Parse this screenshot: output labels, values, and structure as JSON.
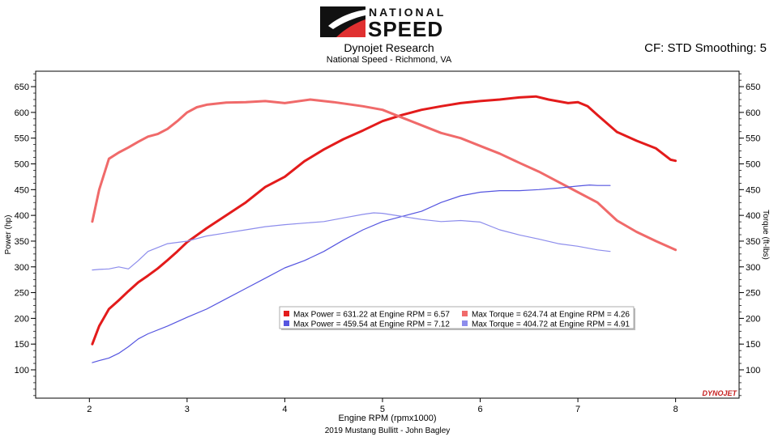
{
  "header": {
    "logo_top": "NATIONAL",
    "logo_bottom": "SPEED",
    "title": "Dynojet Research",
    "subtitle": "National Speed - Richmond, VA",
    "correction": "CF: STD Smoothing: 5",
    "footer": "2019 Mustang Bullitt - John Bagley",
    "watermark": "DYNOJET"
  },
  "colors": {
    "power_after": "#e31b1b",
    "torque_after": "#f06a6a",
    "power_before": "#5555e0",
    "torque_before": "#8c8cec",
    "plot_bg": "#ffffff",
    "frame": "#000000"
  },
  "chart_data": {
    "type": "line",
    "xlabel": "Engine RPM (rpmx1000)",
    "ylabel_left": "Power (hp)",
    "ylabel_right": "Torque (ft-lbs)",
    "xlim": [
      1.45,
      8.65
    ],
    "ylim": [
      45,
      680
    ],
    "xticks": [
      2,
      3,
      4,
      5,
      6,
      7,
      8
    ],
    "yticks": [
      100,
      150,
      200,
      250,
      300,
      350,
      400,
      450,
      500,
      550,
      600,
      650
    ],
    "grid": false,
    "legend_position": "center",
    "series": [
      {
        "key": "power_after",
        "width": 3,
        "legend": "Max Power = 631.22 at Engine RPM = 6.57",
        "x": [
          2.03,
          2.1,
          2.2,
          2.3,
          2.4,
          2.5,
          2.6,
          2.7,
          2.8,
          2.9,
          3.0,
          3.2,
          3.4,
          3.6,
          3.8,
          4.0,
          4.2,
          4.4,
          4.6,
          4.8,
          5.0,
          5.2,
          5.4,
          5.6,
          5.8,
          6.0,
          6.2,
          6.4,
          6.57,
          6.7,
          6.9,
          7.0,
          7.1,
          7.2,
          7.4,
          7.6,
          7.8,
          7.95,
          8.0
        ],
        "y": [
          150,
          185,
          218,
          235,
          253,
          270,
          283,
          297,
          313,
          330,
          348,
          375,
          400,
          425,
          455,
          475,
          505,
          528,
          548,
          565,
          583,
          595,
          605,
          612,
          618,
          622,
          625,
          629,
          631,
          625,
          618,
          620,
          612,
          595,
          562,
          545,
          530,
          508,
          506
        ]
      },
      {
        "key": "torque_after",
        "width": 3,
        "legend": "Max Torque = 624.74 at Engine RPM = 4.26",
        "x": [
          2.03,
          2.1,
          2.2,
          2.3,
          2.4,
          2.5,
          2.6,
          2.7,
          2.8,
          2.9,
          3.0,
          3.1,
          3.2,
          3.4,
          3.6,
          3.8,
          4.0,
          4.26,
          4.5,
          4.8,
          5.0,
          5.2,
          5.4,
          5.6,
          5.8,
          6.0,
          6.2,
          6.4,
          6.6,
          6.8,
          7.0,
          7.2,
          7.4,
          7.6,
          7.8,
          8.0
        ],
        "y": [
          388,
          450,
          510,
          522,
          532,
          543,
          553,
          558,
          568,
          583,
          600,
          610,
          615,
          619,
          620,
          622,
          618,
          625,
          620,
          612,
          605,
          590,
          575,
          560,
          550,
          535,
          520,
          502,
          485,
          465,
          445,
          425,
          390,
          368,
          350,
          333
        ]
      },
      {
        "key": "power_before",
        "width": 1.2,
        "legend": "Max Power = 459.54 at Engine RPM = 7.12",
        "x": [
          2.03,
          2.1,
          2.2,
          2.3,
          2.4,
          2.5,
          2.6,
          2.8,
          3.0,
          3.2,
          3.4,
          3.6,
          3.8,
          4.0,
          4.2,
          4.4,
          4.6,
          4.8,
          5.0,
          5.2,
          5.4,
          5.6,
          5.8,
          6.0,
          6.2,
          6.4,
          6.6,
          6.8,
          7.0,
          7.12,
          7.2,
          7.33
        ],
        "y": [
          114,
          118,
          123,
          132,
          145,
          160,
          170,
          185,
          202,
          218,
          238,
          258,
          278,
          298,
          312,
          330,
          352,
          372,
          388,
          398,
          408,
          425,
          438,
          445,
          448,
          448,
          450,
          453,
          457,
          459,
          458,
          458
        ]
      },
      {
        "key": "torque_before",
        "width": 1.2,
        "legend": "Max Torque = 404.72 at Engine RPM = 4.91",
        "x": [
          2.03,
          2.1,
          2.2,
          2.3,
          2.4,
          2.5,
          2.6,
          2.8,
          3.0,
          3.2,
          3.4,
          3.6,
          3.8,
          4.0,
          4.2,
          4.4,
          4.6,
          4.8,
          4.91,
          5.0,
          5.2,
          5.4,
          5.6,
          5.8,
          6.0,
          6.2,
          6.4,
          6.6,
          6.8,
          7.0,
          7.2,
          7.33
        ],
        "y": [
          294,
          295,
          296,
          300,
          296,
          312,
          330,
          345,
          350,
          360,
          366,
          372,
          378,
          382,
          385,
          388,
          395,
          402,
          405,
          404,
          398,
          392,
          388,
          390,
          387,
          372,
          362,
          354,
          345,
          340,
          333,
          330
        ]
      }
    ],
    "legend": {
      "entries": [
        {
          "key": "power_after",
          "text": "Max Power = 631.22 at Engine RPM = 6.57",
          "col": 0,
          "row": 0
        },
        {
          "key": "torque_after",
          "text": "Max Torque = 624.74 at Engine RPM = 4.26",
          "col": 1,
          "row": 0
        },
        {
          "key": "power_before",
          "text": "Max Power = 459.54 at Engine RPM = 7.12",
          "col": 0,
          "row": 1
        },
        {
          "key": "torque_before",
          "text": "Max Torque = 404.72 at Engine RPM = 4.91",
          "col": 1,
          "row": 1
        }
      ]
    }
  }
}
